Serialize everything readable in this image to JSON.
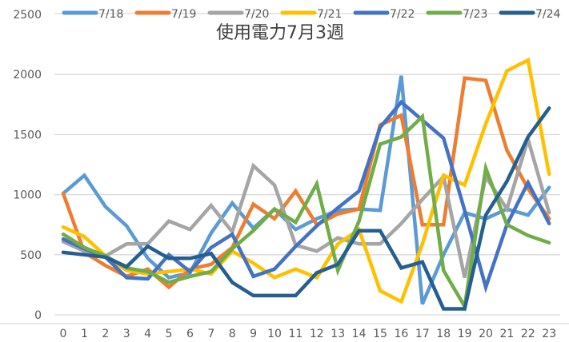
{
  "chart_data": {
    "type": "line",
    "title": "使用電力7月3週",
    "xlabel": "",
    "ylabel": "",
    "ylim": [
      0,
      2500
    ],
    "yticks": [
      0,
      500,
      1000,
      1500,
      2000,
      2500
    ],
    "grid": true,
    "legend_position": "top",
    "x": [
      0,
      1,
      2,
      3,
      4,
      5,
      6,
      7,
      8,
      9,
      10,
      11,
      12,
      13,
      14,
      15,
      16,
      17,
      18,
      19,
      20,
      21,
      22,
      23
    ],
    "series": [
      {
        "name": "7/18",
        "color": "#5B9BD5",
        "values": [
          1010,
          1160,
          900,
          740,
          470,
          310,
          350,
          680,
          930,
          720,
          880,
          710,
          800,
          870,
          880,
          870,
          1990,
          90,
          500,
          850,
          800,
          880,
          830,
          1060
        ]
      },
      {
        "name": "7/19",
        "color": "#ED7D31",
        "values": [
          1010,
          520,
          410,
          320,
          380,
          230,
          380,
          420,
          560,
          920,
          800,
          1030,
          750,
          840,
          880,
          1580,
          1660,
          750,
          750,
          1970,
          1950,
          1370,
          1050,
          800
        ]
      },
      {
        "name": "7/20",
        "color": "#A5A5A5",
        "values": [
          610,
          530,
          490,
          590,
          590,
          780,
          710,
          910,
          690,
          1240,
          1080,
          580,
          530,
          640,
          590,
          590,
          760,
          960,
          1150,
          310,
          1150,
          880,
          1460,
          850
        ]
      },
      {
        "name": "7/21",
        "color": "#FFC000",
        "values": [
          730,
          650,
          490,
          370,
          340,
          360,
          380,
          340,
          530,
          430,
          310,
          380,
          310,
          590,
          710,
          200,
          110,
          590,
          1160,
          1080,
          1590,
          2030,
          2120,
          1170
        ]
      },
      {
        "name": "7/22",
        "color": "#4472C4",
        "values": [
          630,
          550,
          480,
          310,
          300,
          500,
          360,
          560,
          670,
          320,
          380,
          570,
          740,
          890,
          1030,
          1560,
          1770,
          1620,
          1470,
          870,
          230,
          750,
          1100,
          760
        ]
      },
      {
        "name": "7/23",
        "color": "#70AD47",
        "values": [
          670,
          560,
          490,
          390,
          360,
          270,
          320,
          360,
          550,
          700,
          880,
          770,
          1090,
          370,
          780,
          1420,
          1480,
          1650,
          370,
          70,
          1220,
          750,
          660,
          600
        ]
      },
      {
        "name": "7/24",
        "color": "#255E91",
        "values": [
          520,
          500,
          480,
          400,
          570,
          470,
          470,
          510,
          270,
          160,
          160,
          160,
          350,
          420,
          700,
          700,
          390,
          440,
          50,
          50,
          830,
          1110,
          1480,
          1720
        ]
      }
    ]
  }
}
